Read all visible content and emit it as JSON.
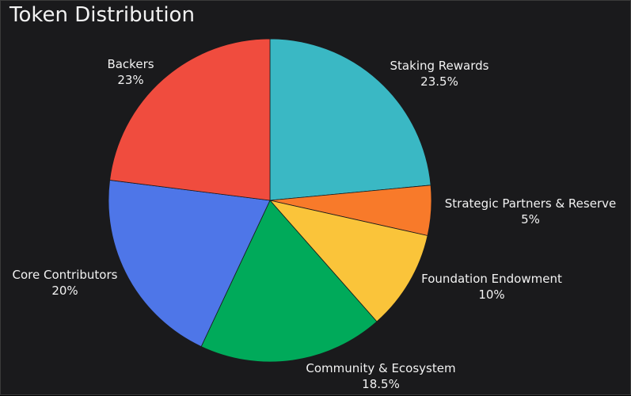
{
  "chart_data": {
    "type": "pie",
    "title": "Token Distribution",
    "slices": [
      {
        "label": "Staking Rewards",
        "value": 23.5,
        "display": "23.5%",
        "color": "#3ab8c4"
      },
      {
        "label": "Strategic Partners & Reserve",
        "value": 5,
        "display": "5%",
        "color": "#f87a2a"
      },
      {
        "label": "Foundation Endowment",
        "value": 10,
        "display": "10%",
        "color": "#fac43a"
      },
      {
        "label": "Community & Ecosystem",
        "value": 18.5,
        "display": "18.5%",
        "color": "#00aa5a"
      },
      {
        "label": "Core Contributors",
        "value": 20,
        "display": "20%",
        "color": "#4e76e8"
      },
      {
        "label": "Backers",
        "value": 23,
        "display": "23%",
        "color": "#f04c3e"
      }
    ],
    "direction": "clockwise",
    "start": "top"
  },
  "colors": {
    "background": "#1a1a1c",
    "text": "#f2f2f2",
    "border": "#3a3a3a"
  }
}
